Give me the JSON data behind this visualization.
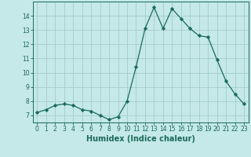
{
  "x": [
    0,
    1,
    2,
    3,
    4,
    5,
    6,
    7,
    8,
    9,
    10,
    11,
    12,
    13,
    14,
    15,
    16,
    17,
    18,
    19,
    20,
    21,
    22,
    23
  ],
  "y": [
    7.2,
    7.4,
    7.7,
    7.8,
    7.7,
    7.4,
    7.3,
    7.0,
    6.7,
    6.9,
    8.0,
    10.4,
    13.1,
    14.6,
    13.1,
    14.5,
    13.8,
    13.1,
    12.6,
    12.5,
    10.9,
    9.4,
    8.5,
    7.8
  ],
  "line_color": "#1a6b5a",
  "marker": "D",
  "marker_size": 2.2,
  "bg_color": "#c5e8e8",
  "grid_color": "#9ec8c8",
  "xlabel": "Humidex (Indice chaleur)",
  "ylim": [
    6.5,
    15.0
  ],
  "xlim": [
    -0.5,
    23.5
  ],
  "yticks": [
    7,
    8,
    9,
    10,
    11,
    12,
    13,
    14
  ],
  "xticks": [
    0,
    1,
    2,
    3,
    4,
    5,
    6,
    7,
    8,
    9,
    10,
    11,
    12,
    13,
    14,
    15,
    16,
    17,
    18,
    19,
    20,
    21,
    22,
    23
  ],
  "tick_label_fontsize": 5.5,
  "xlabel_fontsize": 7.0,
  "tick_color": "#1a6b5a",
  "axis_color": "#1a6b5a",
  "linewidth": 0.9
}
